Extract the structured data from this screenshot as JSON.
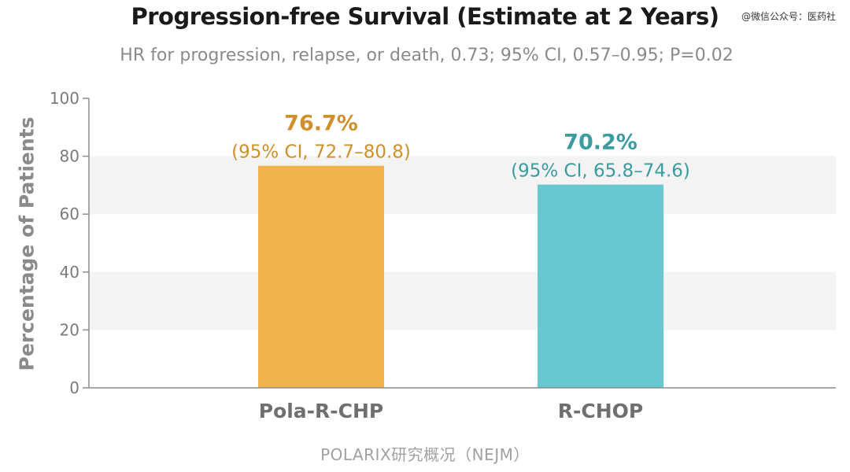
{
  "header": {
    "watermark": "@微信公众号：医药社"
  },
  "footer": {
    "caption": "POLARIX研究概况（NEJM）"
  },
  "chart_data": {
    "type": "bar",
    "title": "Progression-free Survival (Estimate at 2 Years)",
    "subtitle": "HR for progression, relapse, or death, 0.73; 95% CI, 0.57–0.95; P=0.02",
    "xlabel": "",
    "ylabel": "Percentage of Patients",
    "ylim": [
      0,
      100
    ],
    "yticks": [
      0,
      20,
      40,
      60,
      80,
      100
    ],
    "grid": "alternating horizontal bands",
    "categories": [
      "Pola-R-CHP",
      "R-CHOP"
    ],
    "values": [
      76.7,
      70.2
    ],
    "value_labels": [
      "76.7%",
      "70.2%"
    ],
    "ci_labels": [
      "(95% CI, 72.7–80.8)",
      "(95% CI, 65.8–74.6)"
    ],
    "colors": [
      "#F2B24C",
      "#67C8CF"
    ],
    "label_colors": [
      "#D08F2B",
      "#3A9BA1"
    ]
  }
}
